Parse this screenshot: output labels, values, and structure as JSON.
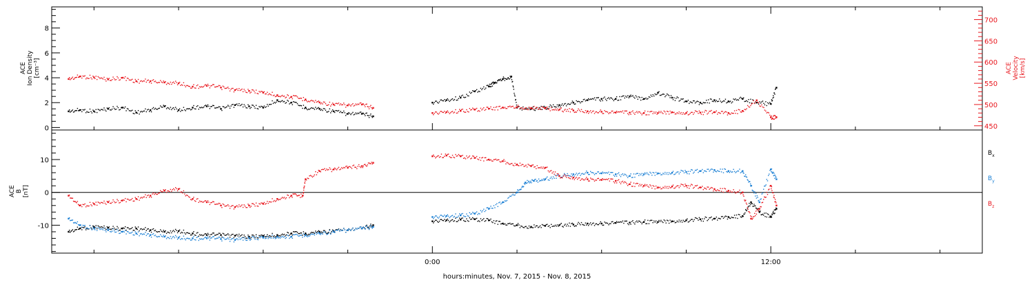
{
  "chart_data": [
    {
      "type": "scatter",
      "ylabel": [
        "ACE",
        "Ion Density",
        "[cm⁻³]"
      ],
      "ylim": [
        -0.2,
        9.7
      ],
      "yticks": [
        0,
        2,
        4,
        6,
        8
      ],
      "y2label": [
        "ACE",
        "Velocity",
        "[km/s]"
      ],
      "y2lim": [
        440,
        730
      ],
      "y2ticks": [
        450,
        500,
        550,
        600,
        650,
        700
      ],
      "colors": {
        "density": "#000000",
        "velocity": "#e8141b"
      },
      "series": [
        {
          "axis": "left",
          "color": "#000000",
          "x": [
            -12.9,
            -12.5,
            -12,
            -11.5,
            -11,
            -10.5,
            -10,
            -9.5,
            -9,
            -8.5,
            -8,
            -7.5,
            -7,
            -6.5,
            -6,
            -5.5,
            -5,
            -4.5,
            -4,
            -3.5,
            -3,
            -2.5,
            -2.1,
            0,
            0.5,
            1,
            1.5,
            2,
            2.2,
            2.5,
            2.8,
            3,
            3.5,
            4,
            4.5,
            5,
            5.5,
            6,
            6.5,
            7,
            7.5,
            8,
            8.5,
            9,
            9.5,
            10,
            10.5,
            11,
            11.5,
            12,
            12.2
          ],
          "y": [
            1.3,
            1.4,
            1.3,
            1.5,
            1.6,
            1.2,
            1.4,
            1.7,
            1.4,
            1.6,
            1.7,
            1.5,
            1.8,
            1.7,
            1.6,
            2.2,
            2.0,
            1.6,
            1.5,
            1.3,
            1.1,
            1.1,
            0.9,
            2.0,
            2.2,
            2.4,
            2.9,
            3.3,
            3.6,
            3.9,
            4.1,
            1.6,
            1.5,
            1.6,
            1.8,
            2.0,
            2.2,
            2.3,
            2.3,
            2.5,
            2.3,
            2.8,
            2.4,
            2.1,
            2.0,
            2.2,
            2.1,
            2.3,
            2.0,
            1.9,
            3.2
          ]
        },
        {
          "axis": "right",
          "color": "#e8141b",
          "x": [
            -12.9,
            -12.5,
            -12,
            -11.5,
            -11,
            -10.5,
            -10,
            -9.5,
            -9,
            -8.5,
            -8,
            -7.5,
            -7,
            -6.5,
            -6,
            -5.5,
            -5,
            -4.5,
            -4,
            -3.5,
            -3,
            -2.5,
            -2.1,
            0,
            0.5,
            1,
            1.5,
            2,
            2.5,
            3,
            3.5,
            4,
            4.5,
            5,
            5.5,
            6,
            6.5,
            7,
            7.5,
            8,
            8.5,
            9,
            9.5,
            10,
            10.5,
            11,
            11.5,
            12,
            12.2
          ],
          "y": [
            560,
            566,
            564,
            559,
            563,
            555,
            555,
            552,
            550,
            542,
            544,
            540,
            534,
            532,
            528,
            522,
            518,
            512,
            505,
            500,
            498,
            500,
            492,
            480,
            482,
            485,
            488,
            490,
            493,
            494,
            492,
            491,
            488,
            486,
            484,
            483,
            481,
            481,
            480,
            480,
            482,
            480,
            481,
            482,
            480,
            485,
            510,
            470,
            470
          ]
        }
      ]
    },
    {
      "type": "scatter",
      "ylabel": [
        "ACE",
        "B",
        "[nT]"
      ],
      "ylim": [
        -18.5,
        19
      ],
      "yticks": [
        -10,
        0,
        10
      ],
      "zero_line": true,
      "legend_position": "right",
      "series": [
        {
          "name": "Bx",
          "color": "#000000",
          "x": [
            -12.9,
            -12.5,
            -12,
            -11.5,
            -11,
            -10.5,
            -10,
            -9.5,
            -9,
            -8.5,
            -8,
            -7.5,
            -7,
            -6.5,
            -6,
            -5.5,
            -5,
            -4.5,
            -4,
            -3.5,
            -3,
            -2.5,
            -2.1,
            0,
            0.5,
            1,
            1.5,
            2,
            2.5,
            3,
            3.5,
            4,
            4.5,
            5,
            5.5,
            6,
            6.5,
            7,
            7.5,
            8,
            8.5,
            9,
            9.5,
            10,
            10.5,
            11,
            11.3,
            11.6,
            12,
            12.2
          ],
          "y": [
            -12,
            -11,
            -10.5,
            -10.8,
            -11,
            -11,
            -11.5,
            -12,
            -11.8,
            -12.5,
            -13,
            -13,
            -13.2,
            -13.5,
            -13.3,
            -13,
            -12.5,
            -12.5,
            -12,
            -11.8,
            -11.5,
            -11,
            -10,
            -8.8,
            -8.5,
            -8.3,
            -8.2,
            -8.5,
            -9.5,
            -10,
            -10.5,
            -10.2,
            -10,
            -9.8,
            -9.5,
            -9.5,
            -9.3,
            -9.2,
            -9,
            -9,
            -8.8,
            -8.5,
            -8.2,
            -8,
            -7.5,
            -7.2,
            -3,
            -6,
            -7.5,
            -5
          ]
        },
        {
          "name": "By",
          "color": "#1a7fd4",
          "x": [
            -12.9,
            -12.5,
            -12,
            -11.5,
            -11,
            -10.5,
            -10,
            -9.5,
            -9,
            -8.5,
            -8,
            -7.5,
            -7,
            -6.5,
            -6,
            -5.5,
            -5,
            -4.5,
            -4,
            -3.5,
            -3,
            -2.5,
            -2.1,
            0,
            0.5,
            1,
            1.5,
            2,
            2.5,
            3,
            3.3,
            3.6,
            4,
            4.5,
            5,
            5.5,
            6,
            6.5,
            7,
            7.5,
            8,
            8.5,
            9,
            9.5,
            10,
            10.5,
            11,
            11.3,
            11.6,
            12,
            12.2
          ],
          "y": [
            -8,
            -10,
            -11,
            -11.5,
            -12,
            -12.5,
            -13,
            -13.5,
            -13.8,
            -14,
            -14,
            -14.2,
            -14.5,
            -14,
            -13.8,
            -13.5,
            -13.5,
            -13,
            -12.5,
            -12,
            -11.5,
            -11,
            -10.5,
            -7.5,
            -7.2,
            -7,
            -6.5,
            -5,
            -3,
            0,
            3,
            3.5,
            4,
            5,
            5.5,
            6,
            5.8,
            5.5,
            5,
            5.5,
            5.8,
            6,
            6.2,
            6.5,
            6.8,
            6.5,
            6.5,
            2,
            -3,
            7,
            4
          ]
        },
        {
          "name": "Bz",
          "color": "#e8141b",
          "x": [
            -12.9,
            -12.5,
            -12,
            -11.5,
            -11,
            -10.5,
            -10,
            -9.5,
            -9,
            -8.5,
            -8,
            -7.5,
            -7,
            -6.5,
            -6,
            -5.5,
            -5,
            -4.6,
            -4.5,
            -4,
            -3.5,
            -3,
            -2.5,
            -2.1,
            0,
            0.5,
            1,
            1.5,
            2,
            2.5,
            3,
            3.5,
            4,
            4.5,
            5,
            5.5,
            6,
            6.5,
            7,
            7.5,
            8,
            8.5,
            9,
            9.5,
            10,
            10.5,
            11,
            11.3,
            11.6,
            12,
            12.2
          ],
          "y": [
            -1,
            -4,
            -3.5,
            -3,
            -2.5,
            -2,
            -1,
            0.5,
            1,
            -2,
            -3,
            -4,
            -4.5,
            -4,
            -3.5,
            -2,
            -1,
            -1,
            4,
            6.5,
            7,
            7.5,
            8,
            9,
            11,
            11.2,
            11,
            10.5,
            10,
            9.5,
            8.5,
            8,
            7.5,
            5,
            4.5,
            4,
            3.8,
            3.5,
            2.5,
            2,
            1.5,
            1.8,
            2,
            1.5,
            1,
            0.5,
            0,
            -8,
            -5,
            2,
            -4
          ]
        }
      ]
    }
  ],
  "x_axis": {
    "xlim": [
      -13.5,
      19.5
    ],
    "major_ticks": [
      0,
      12
    ],
    "tick_labels": [
      "0:00",
      "12:00"
    ],
    "label": "hours:minutes, Nov.  7, 2015 - Nov.  8, 2015"
  },
  "legend": [
    {
      "name": "B",
      "subscript": "x",
      "color": "#000000"
    },
    {
      "name": "B",
      "subscript": "y",
      "color": "#1a7fd4"
    },
    {
      "name": "B",
      "subscript": "z",
      "color": "#e8141b"
    }
  ]
}
